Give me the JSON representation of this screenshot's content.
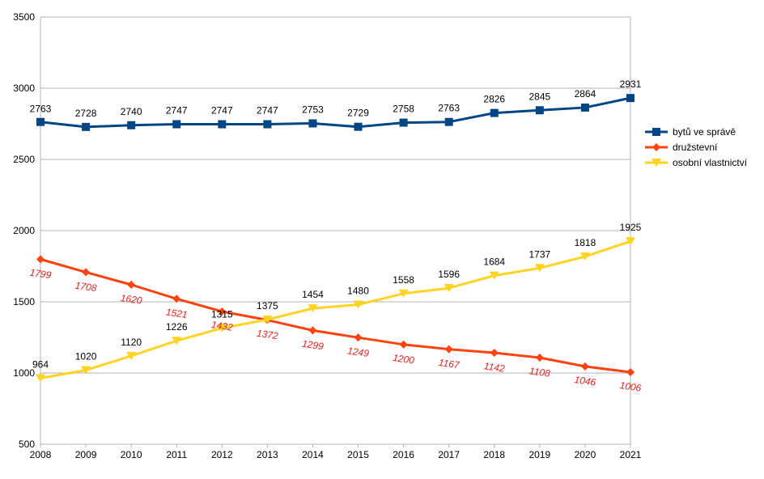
{
  "chart_data": {
    "type": "line",
    "title": "",
    "xlabel": "",
    "ylabel": "",
    "ylim": [
      500,
      3500
    ],
    "yticks": [
      500,
      1000,
      1500,
      2000,
      2500,
      3000,
      3500
    ],
    "grid": "horizontal",
    "legend_position": "right",
    "categories": [
      "2008",
      "2009",
      "2010",
      "2011",
      "2012",
      "2013",
      "2014",
      "2015",
      "2016",
      "2017",
      "2018",
      "2019",
      "2020",
      "2021"
    ],
    "series": [
      {
        "name": "bytů ve správě",
        "color": "#004586",
        "marker": "square",
        "label_style": "plain",
        "values": [
          2763,
          2728,
          2740,
          2747,
          2747,
          2747,
          2753,
          2729,
          2758,
          2763,
          2826,
          2845,
          2864,
          2931
        ]
      },
      {
        "name": "družstevní",
        "color": "#ff420e",
        "marker": "diamond",
        "label_style": "red-italic",
        "values": [
          1799,
          1708,
          1620,
          1521,
          1432,
          1372,
          1299,
          1249,
          1200,
          1167,
          1142,
          1108,
          1046,
          1006
        ]
      },
      {
        "name": "osobní vlastnictví",
        "color": "#ffd320",
        "marker": "triangle-down",
        "label_style": "plain",
        "values": [
          964,
          1020,
          1120,
          1226,
          1315,
          1375,
          1454,
          1480,
          1558,
          1596,
          1684,
          1737,
          1818,
          1925
        ]
      }
    ]
  }
}
